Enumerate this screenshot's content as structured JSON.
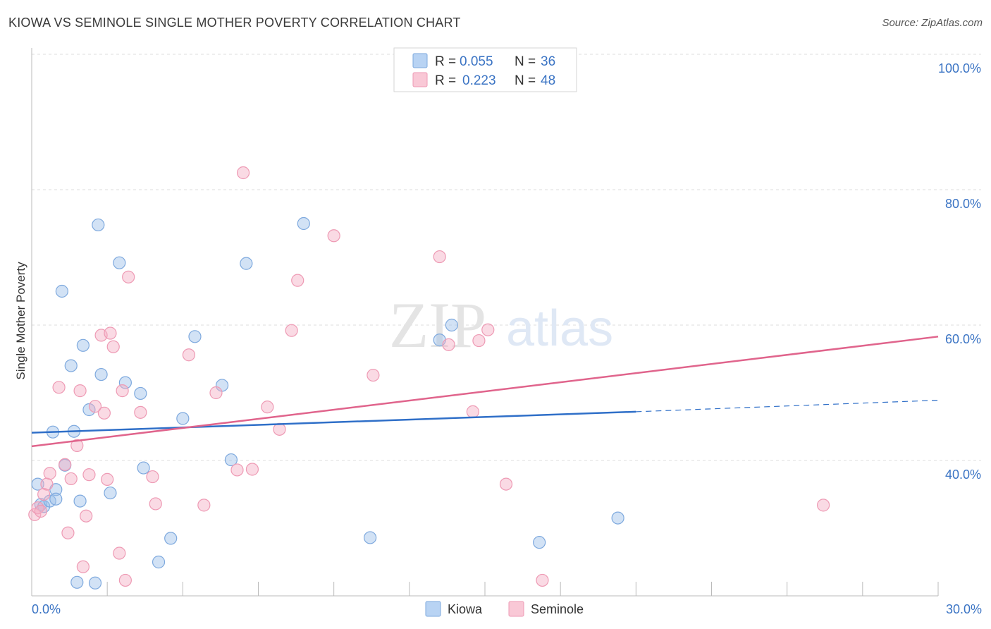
{
  "title": "KIOWA VS SEMINOLE SINGLE MOTHER POVERTY CORRELATION CHART",
  "source": "Source: ZipAtlas.com",
  "watermark": {
    "zip": "ZIP",
    "atlas": "atlas"
  },
  "chart_data": {
    "type": "scatter",
    "ylabel": "Single Mother Poverty",
    "xlim": [
      0,
      30
    ],
    "ylim": [
      20,
      100
    ],
    "x_ticks": [
      "0.0%",
      "30.0%"
    ],
    "y_ticks": [
      {
        "value": 100,
        "label": "100.0%"
      },
      {
        "value": 80,
        "label": "80.0%"
      },
      {
        "value": 60,
        "label": "60.0%"
      },
      {
        "value": 40,
        "label": "40.0%"
      }
    ],
    "stats": [
      {
        "r_label": "R =",
        "r": "0.055",
        "n_label": "N =",
        "n": "36"
      },
      {
        "r_label": "R =",
        "r": "0.223",
        "n_label": "N =",
        "n": "48"
      }
    ],
    "series": [
      {
        "name": "Kiowa",
        "color": "#9bbfe8",
        "line_color": "#2f6fc8",
        "trend": {
          "x0": 0,
          "y0": 44.1,
          "x1": 20,
          "y1": 47.2,
          "dash_to_x": 30,
          "dash_to_y": 48.9
        },
        "points": [
          [
            0.2,
            36.5
          ],
          [
            0.3,
            33.5
          ],
          [
            0.4,
            33.2
          ],
          [
            0.6,
            34.0
          ],
          [
            0.7,
            44.2
          ],
          [
            0.8,
            35.7
          ],
          [
            0.8,
            34.3
          ],
          [
            1.0,
            65.0
          ],
          [
            1.1,
            39.3
          ],
          [
            1.3,
            54.0
          ],
          [
            1.4,
            44.3
          ],
          [
            1.6,
            34.0
          ],
          [
            1.7,
            57.0
          ],
          [
            1.9,
            47.5
          ],
          [
            2.2,
            74.8
          ],
          [
            2.3,
            52.7
          ],
          [
            2.6,
            35.2
          ],
          [
            2.9,
            69.2
          ],
          [
            3.1,
            51.5
          ],
          [
            3.6,
            49.9
          ],
          [
            3.7,
            38.9
          ],
          [
            4.2,
            25.0
          ],
          [
            4.6,
            28.5
          ],
          [
            5.0,
            46.2
          ],
          [
            5.4,
            58.3
          ],
          [
            6.3,
            51.1
          ],
          [
            6.6,
            40.1
          ],
          [
            7.1,
            69.1
          ],
          [
            9.0,
            75.0
          ],
          [
            11.2,
            28.6
          ],
          [
            13.5,
            57.8
          ],
          [
            13.9,
            60.0
          ],
          [
            16.8,
            27.9
          ],
          [
            19.4,
            31.5
          ],
          [
            1.5,
            22.0
          ],
          [
            2.1,
            21.9
          ]
        ]
      },
      {
        "name": "Seminole",
        "color": "#f5aec4",
        "line_color": "#e0648c",
        "trend": {
          "x0": 0,
          "y0": 42.1,
          "x1": 30,
          "y1": 58.3
        },
        "points": [
          [
            0.1,
            32.0
          ],
          [
            0.2,
            33.0
          ],
          [
            0.3,
            32.5
          ],
          [
            0.4,
            35.0
          ],
          [
            0.5,
            36.5
          ],
          [
            0.6,
            38.1
          ],
          [
            0.9,
            50.8
          ],
          [
            1.1,
            39.4
          ],
          [
            1.2,
            29.3
          ],
          [
            1.3,
            37.3
          ],
          [
            1.5,
            42.2
          ],
          [
            1.6,
            50.3
          ],
          [
            1.7,
            24.3
          ],
          [
            1.8,
            31.8
          ],
          [
            1.9,
            37.9
          ],
          [
            2.1,
            48.0
          ],
          [
            2.3,
            58.5
          ],
          [
            2.4,
            47.0
          ],
          [
            2.5,
            37.2
          ],
          [
            2.6,
            58.8
          ],
          [
            2.7,
            56.8
          ],
          [
            2.9,
            26.3
          ],
          [
            3.0,
            50.3
          ],
          [
            3.1,
            22.3
          ],
          [
            3.2,
            67.1
          ],
          [
            3.6,
            47.1
          ],
          [
            4.0,
            37.6
          ],
          [
            4.1,
            33.6
          ],
          [
            5.2,
            55.6
          ],
          [
            5.7,
            33.4
          ],
          [
            6.1,
            50.0
          ],
          [
            6.8,
            38.6
          ],
          [
            7.0,
            82.5
          ],
          [
            7.3,
            38.7
          ],
          [
            7.8,
            47.9
          ],
          [
            8.2,
            44.6
          ],
          [
            8.6,
            59.2
          ],
          [
            8.8,
            66.6
          ],
          [
            10.0,
            73.2
          ],
          [
            11.3,
            52.6
          ],
          [
            13.5,
            70.1
          ],
          [
            13.8,
            57.1
          ],
          [
            14.6,
            47.2
          ],
          [
            14.8,
            57.7
          ],
          [
            15.1,
            59.3
          ],
          [
            15.7,
            36.5
          ],
          [
            16.9,
            22.3
          ],
          [
            26.2,
            33.4
          ]
        ]
      }
    ],
    "legend": [
      "Kiowa",
      "Seminole"
    ]
  }
}
